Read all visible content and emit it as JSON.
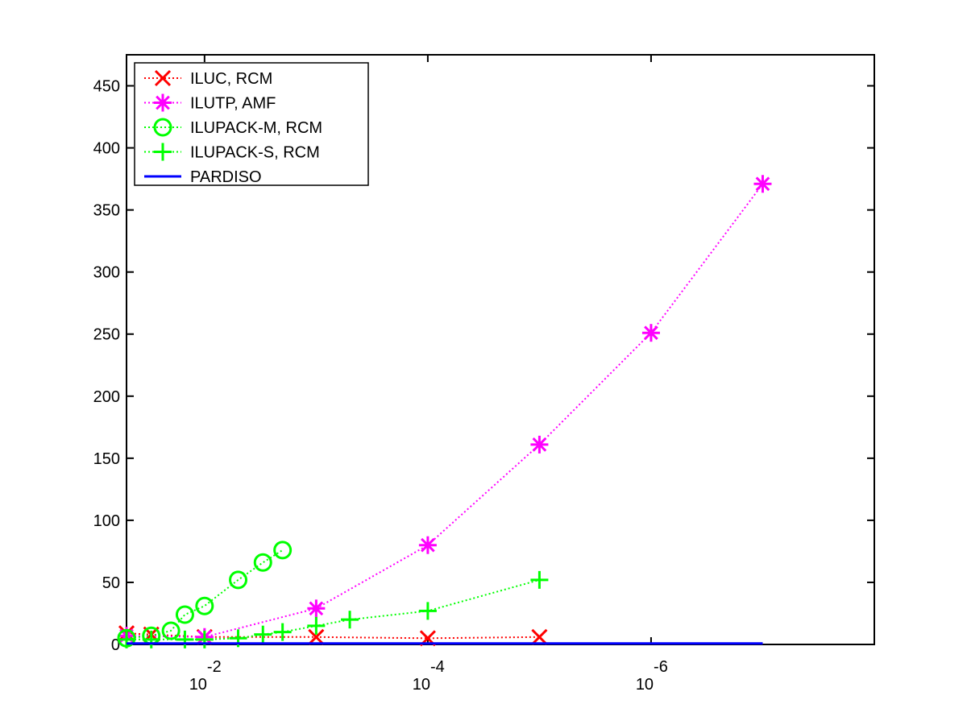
{
  "chart_data": {
    "type": "line",
    "title": "",
    "xlabel": "",
    "ylabel": "",
    "x_scale": "log",
    "x_direction": "decreasing",
    "x_range": [
      0.05,
      1e-08
    ],
    "x_ticks": [
      {
        "value": 0.01,
        "base": "10",
        "exponent": "-2"
      },
      {
        "value": 0.0001,
        "base": "10",
        "exponent": "-4"
      },
      {
        "value": 1e-06,
        "base": "10",
        "exponent": "-6"
      }
    ],
    "y_range": [
      0,
      475
    ],
    "y_ticks": [
      {
        "value": 0,
        "label": "0"
      },
      {
        "value": 50,
        "label": "50"
      },
      {
        "value": 100,
        "label": "100"
      },
      {
        "value": 150,
        "label": "150"
      },
      {
        "value": 200,
        "label": "200"
      },
      {
        "value": 250,
        "label": "250"
      },
      {
        "value": 300,
        "label": "300"
      },
      {
        "value": 350,
        "label": "350"
      },
      {
        "value": 400,
        "label": "400"
      },
      {
        "value": 450,
        "label": "450"
      }
    ],
    "grid": false,
    "legend_position": "top-left",
    "series": [
      {
        "name": "ILUC, RCM",
        "color": "#ff0000",
        "marker": "x",
        "line_style": "dotted",
        "points": [
          {
            "x": 0.05,
            "y": 9
          },
          {
            "x": 0.03,
            "y": 8
          },
          {
            "x": 0.01,
            "y": 6
          },
          {
            "x": 0.001,
            "y": 6
          },
          {
            "x": 0.0001,
            "y": 5
          },
          {
            "x": 1e-05,
            "y": 6
          }
        ]
      },
      {
        "name": "ILUTP, AMF",
        "color": "#ff00ff",
        "marker": "asterisk",
        "line_style": "dotted",
        "points": [
          {
            "x": 0.05,
            "y": 7
          },
          {
            "x": 0.01,
            "y": 6
          },
          {
            "x": 0.001,
            "y": 29
          },
          {
            "x": 0.0001,
            "y": 80
          },
          {
            "x": 1e-05,
            "y": 161
          },
          {
            "x": 1e-06,
            "y": 251
          },
          {
            "x": 1e-07,
            "y": 371
          }
        ]
      },
      {
        "name": "ILUPACK-M, RCM",
        "color": "#00ff00",
        "marker": "circle",
        "line_style": "dotted",
        "points": [
          {
            "x": 0.05,
            "y": 5
          },
          {
            "x": 0.03,
            "y": 7
          },
          {
            "x": 0.02,
            "y": 11
          },
          {
            "x": 0.015,
            "y": 24
          },
          {
            "x": 0.01,
            "y": 31
          },
          {
            "x": 0.005,
            "y": 52
          },
          {
            "x": 0.003,
            "y": 66
          },
          {
            "x": 0.002,
            "y": 76
          }
        ]
      },
      {
        "name": "ILUPACK-S, RCM",
        "color": "#00ff00",
        "marker": "plus",
        "line_style": "dotted",
        "points": [
          {
            "x": 0.05,
            "y": 4
          },
          {
            "x": 0.03,
            "y": 4
          },
          {
            "x": 0.015,
            "y": 4
          },
          {
            "x": 0.01,
            "y": 4
          },
          {
            "x": 0.005,
            "y": 5
          },
          {
            "x": 0.003,
            "y": 8
          },
          {
            "x": 0.002,
            "y": 10
          },
          {
            "x": 0.001,
            "y": 15
          },
          {
            "x": 0.0005,
            "y": 20
          },
          {
            "x": 0.0001,
            "y": 27
          },
          {
            "x": 1e-05,
            "y": 52
          }
        ]
      },
      {
        "name": "PARDISO",
        "color": "#0000ff",
        "marker": "none",
        "line_style": "solid",
        "points": [
          {
            "x": 0.05,
            "y": 0.8
          },
          {
            "x": 1e-07,
            "y": 0.8
          }
        ]
      }
    ]
  }
}
